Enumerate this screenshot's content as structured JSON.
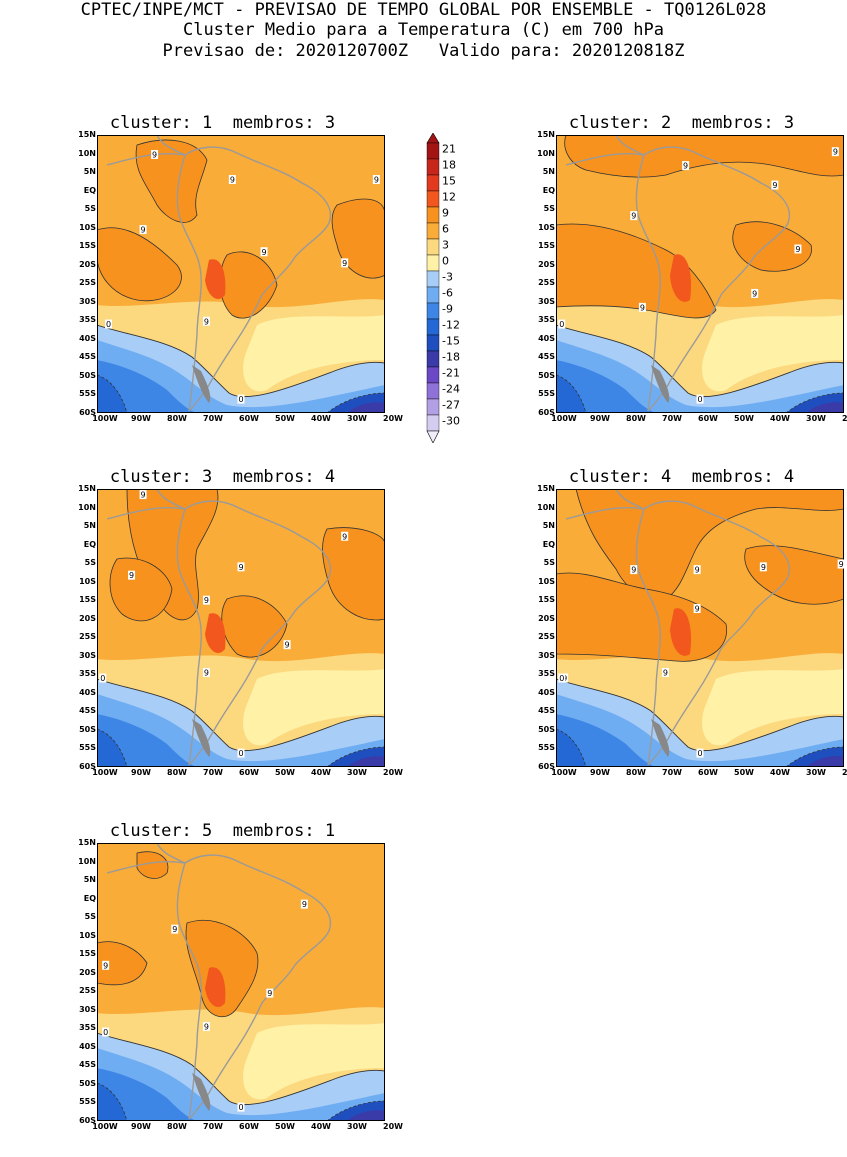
{
  "header": {
    "line1": "CPTEC/INPE/MCT - PREVISAO DE TEMPO GLOBAL POR ENSEMBLE - TQ0126L028",
    "line2": "Cluster Medio para a Temperatura (C) em 700 hPa",
    "line3": "Previsao de: 2020120700Z   Valido para: 2020120818Z"
  },
  "panels": [
    {
      "title": "cluster: 1  membros: 3",
      "contour_labels": [
        "9",
        "9",
        "9",
        "9",
        "9",
        "9",
        "9",
        "0",
        "0"
      ]
    },
    {
      "title": "cluster: 2  membros: 3",
      "contour_labels": [
        "9",
        "9",
        "9",
        "9",
        "9",
        "9",
        "9",
        "0",
        "0"
      ]
    },
    {
      "title": "cluster: 3  membros: 4",
      "contour_labels": [
        "9",
        "9",
        "9",
        "9",
        "9",
        "9",
        "9",
        "0",
        "0"
      ]
    },
    {
      "title": "cluster: 4  membros: 4",
      "contour_labels": [
        "9",
        "9",
        "9",
        "9",
        "9",
        "9",
        "9",
        "0",
        "0"
      ]
    },
    {
      "title": "cluster: 5  membros: 1",
      "contour_labels": [
        "9",
        "9",
        "9",
        "9",
        "9",
        "0",
        "0"
      ]
    }
  ],
  "axes": {
    "lat_labels": [
      "15N",
      "10N",
      "5N",
      "EQ",
      "5S",
      "10S",
      "15S",
      "20S",
      "25S",
      "30S",
      "35S",
      "40S",
      "45S",
      "50S",
      "55S",
      "60S"
    ],
    "lon_labels": [
      "100W",
      "90W",
      "80W",
      "70W",
      "60W",
      "50W",
      "40W",
      "30W",
      "20W"
    ]
  },
  "legend": {
    "labels": [
      "21",
      "18",
      "15",
      "12",
      "9",
      "6",
      "3",
      "0",
      "-3",
      "-6",
      "-9",
      "-12",
      "-15",
      "-18",
      "-21",
      "-24",
      "-27",
      "-30"
    ],
    "colors": [
      "#a31515",
      "#c7261b",
      "#e23a1e",
      "#f2581d",
      "#f7921e",
      "#f9ac38",
      "#fcd87f",
      "#fff1a6",
      "#a8cdf7",
      "#6fadf3",
      "#3d86e6",
      "#2368d4",
      "#1f4fbf",
      "#3a3aa8",
      "#6a48c6",
      "#8e72d8",
      "#b29fe4",
      "#d6ccf0"
    ]
  },
  "colors": {
    "coast": "#9a9a9a",
    "contour": "#333333"
  }
}
